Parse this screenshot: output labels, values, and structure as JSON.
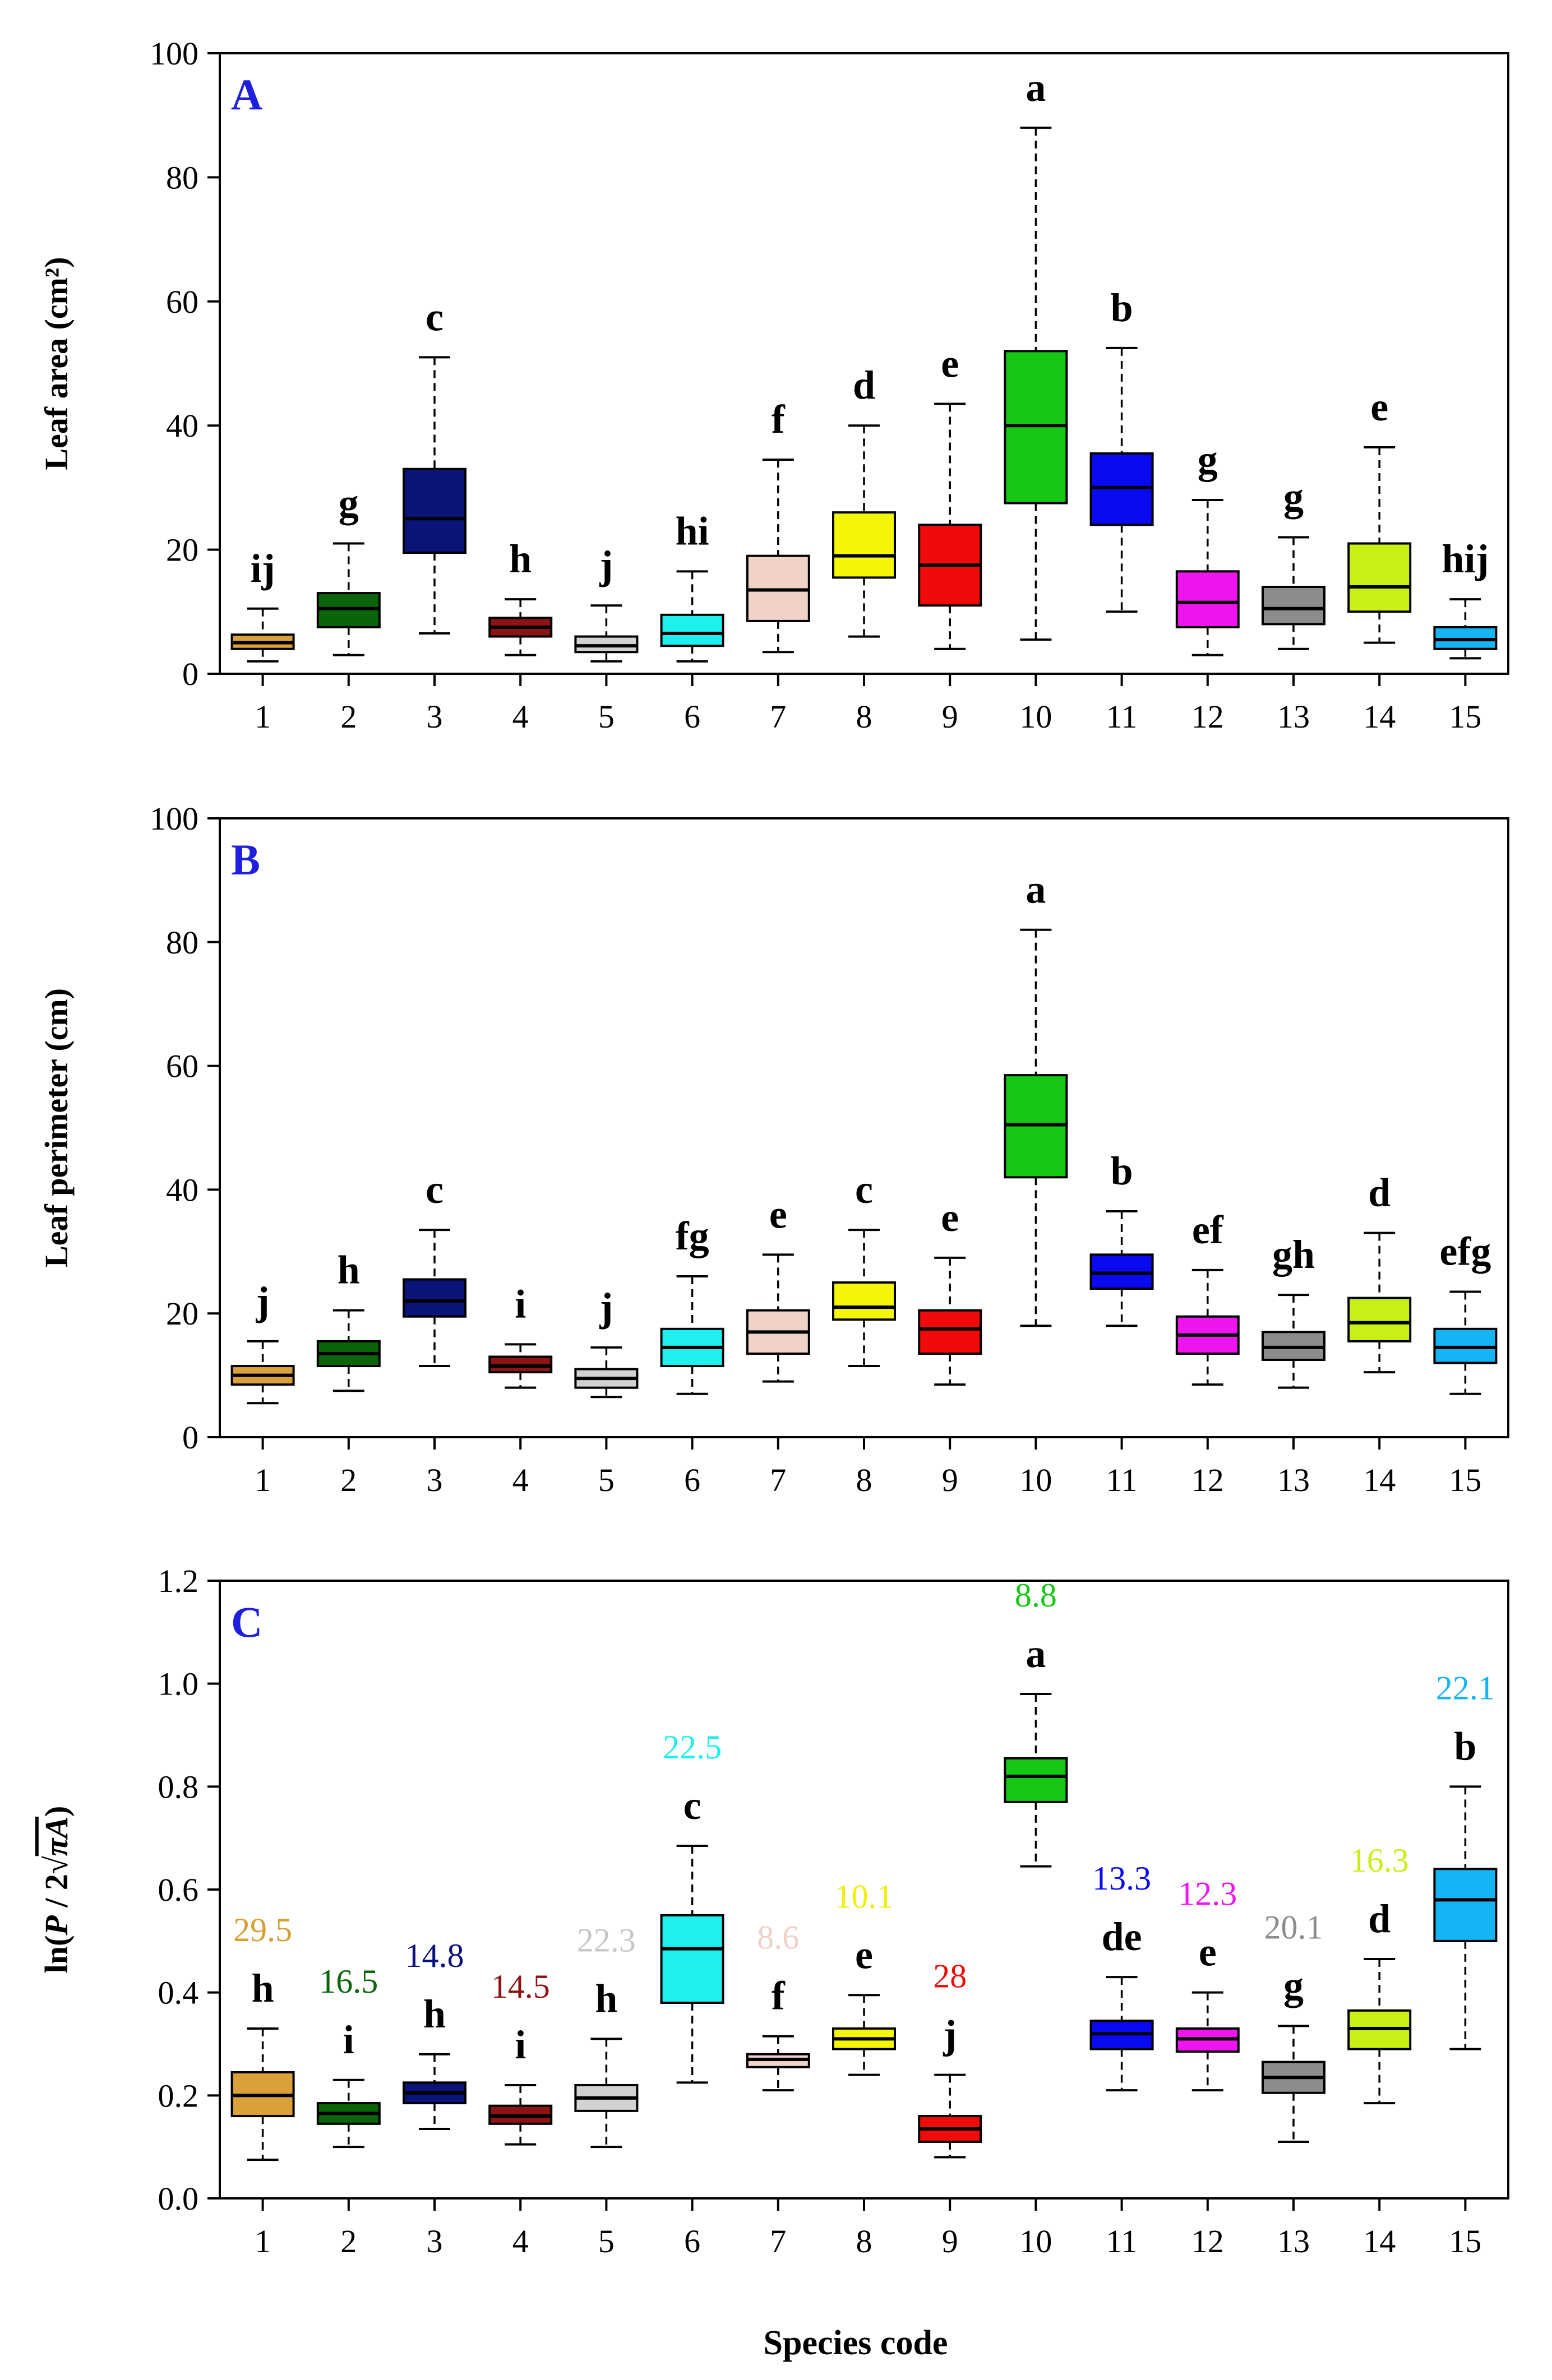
{
  "figure": {
    "xlabel": "Species code"
  },
  "chart_data": [
    {
      "type": "box",
      "panel_label": "A",
      "ylabel": "Leaf area (cm²)",
      "ylim": [
        0,
        100
      ],
      "yticks": [
        "0",
        "20",
        "40",
        "60",
        "80",
        "100"
      ],
      "categories": [
        "1",
        "2",
        "3",
        "4",
        "5",
        "6",
        "7",
        "8",
        "9",
        "10",
        "11",
        "12",
        "13",
        "14",
        "15"
      ],
      "boxes": [
        {
          "min": 2,
          "q1": 4,
          "median": 5,
          "q3": 6.3,
          "max": 10.5
        },
        {
          "min": 3,
          "q1": 7.5,
          "median": 10.5,
          "q3": 13,
          "max": 21
        },
        {
          "min": 6.5,
          "q1": 19.5,
          "median": 25,
          "q3": 33,
          "max": 51
        },
        {
          "min": 3,
          "q1": 6,
          "median": 7.5,
          "q3": 9,
          "max": 12
        },
        {
          "min": 2,
          "q1": 3.5,
          "median": 4.5,
          "q3": 6,
          "max": 11
        },
        {
          "min": 2,
          "q1": 4.5,
          "median": 6.5,
          "q3": 9.5,
          "max": 16.5
        },
        {
          "min": 3.5,
          "q1": 8.5,
          "median": 13.5,
          "q3": 19,
          "max": 34.5
        },
        {
          "min": 6,
          "q1": 15.5,
          "median": 19,
          "q3": 26,
          "max": 40
        },
        {
          "min": 4,
          "q1": 11,
          "median": 17.5,
          "q3": 24,
          "max": 43.5
        },
        {
          "min": 5.5,
          "q1": 27.5,
          "median": 40,
          "q3": 52,
          "max": 88
        },
        {
          "min": 10,
          "q1": 24,
          "median": 30,
          "q3": 35.5,
          "max": 52.5
        },
        {
          "min": 3,
          "q1": 7.5,
          "median": 11.5,
          "q3": 16.5,
          "max": 28
        },
        {
          "min": 4,
          "q1": 8,
          "median": 10.5,
          "q3": 14,
          "max": 22
        },
        {
          "min": 5,
          "q1": 10,
          "median": 14,
          "q3": 21,
          "max": 36.5
        },
        {
          "min": 2.5,
          "q1": 4,
          "median": 5.5,
          "q3": 7.5,
          "max": 12
        }
      ],
      "letters": [
        "ij",
        "g",
        "c",
        "h",
        "j",
        "hi",
        "f",
        "d",
        "e",
        "a",
        "b",
        "g",
        "g",
        "e",
        "hij"
      ]
    },
    {
      "type": "box",
      "panel_label": "B",
      "ylabel": "Leaf perimeter (cm)",
      "ylim": [
        0,
        100
      ],
      "yticks": [
        "0",
        "20",
        "40",
        "60",
        "80",
        "100"
      ],
      "categories": [
        "1",
        "2",
        "3",
        "4",
        "5",
        "6",
        "7",
        "8",
        "9",
        "10",
        "11",
        "12",
        "13",
        "14",
        "15"
      ],
      "boxes": [
        {
          "min": 5.5,
          "q1": 8.5,
          "median": 10,
          "q3": 11.5,
          "max": 15.5
        },
        {
          "min": 7.5,
          "q1": 11.5,
          "median": 13.5,
          "q3": 15.5,
          "max": 20.5
        },
        {
          "min": 11.5,
          "q1": 19.5,
          "median": 22,
          "q3": 25.5,
          "max": 33.5
        },
        {
          "min": 8,
          "q1": 10.5,
          "median": 11.5,
          "q3": 13,
          "max": 15
        },
        {
          "min": 6.5,
          "q1": 8,
          "median": 9.5,
          "q3": 11,
          "max": 14.5
        },
        {
          "min": 7,
          "q1": 11.5,
          "median": 14.5,
          "q3": 17.5,
          "max": 26
        },
        {
          "min": 9,
          "q1": 13.5,
          "median": 17,
          "q3": 20.5,
          "max": 29.5
        },
        {
          "min": 11.5,
          "q1": 19,
          "median": 21,
          "q3": 25,
          "max": 33.5
        },
        {
          "min": 8.5,
          "q1": 13.5,
          "median": 17.5,
          "q3": 20.5,
          "max": 29
        },
        {
          "min": 18,
          "q1": 42,
          "median": 50.5,
          "q3": 58.5,
          "max": 82
        },
        {
          "min": 18,
          "q1": 24,
          "median": 26.5,
          "q3": 29.5,
          "max": 36.5
        },
        {
          "min": 8.5,
          "q1": 13.5,
          "median": 16.5,
          "q3": 19.5,
          "max": 27
        },
        {
          "min": 8,
          "q1": 12.5,
          "median": 14.5,
          "q3": 17,
          "max": 23
        },
        {
          "min": 10.5,
          "q1": 15.5,
          "median": 18.5,
          "q3": 22.5,
          "max": 33
        },
        {
          "min": 7,
          "q1": 12,
          "median": 14.5,
          "q3": 17.5,
          "max": 23.5
        }
      ],
      "letters": [
        "j",
        "h",
        "c",
        "i",
        "j",
        "fg",
        "e",
        "c",
        "e",
        "a",
        "b",
        "ef",
        "gh",
        "d",
        "efg"
      ]
    },
    {
      "type": "box",
      "panel_label": "C",
      "ylabel_prefix": "ln(",
      "ylabel_p": "P",
      "ylabel_mid": " / 2",
      "ylabel_root": "πA",
      "ylabel_suffix": ")",
      "ylim": [
        0,
        1.2
      ],
      "yticks": [
        "0.0",
        "0.2",
        "0.4",
        "0.6",
        "0.8",
        "1.0",
        "1.2"
      ],
      "categories": [
        "1",
        "2",
        "3",
        "4",
        "5",
        "6",
        "7",
        "8",
        "9",
        "10",
        "11",
        "12",
        "13",
        "14",
        "15"
      ],
      "boxes": [
        {
          "min": 0.075,
          "q1": 0.16,
          "median": 0.2,
          "q3": 0.245,
          "max": 0.33
        },
        {
          "min": 0.1,
          "q1": 0.145,
          "median": 0.165,
          "q3": 0.185,
          "max": 0.23
        },
        {
          "min": 0.135,
          "q1": 0.185,
          "median": 0.205,
          "q3": 0.225,
          "max": 0.28
        },
        {
          "min": 0.105,
          "q1": 0.145,
          "median": 0.16,
          "q3": 0.18,
          "max": 0.22
        },
        {
          "min": 0.1,
          "q1": 0.17,
          "median": 0.195,
          "q3": 0.22,
          "max": 0.31
        },
        {
          "min": 0.225,
          "q1": 0.38,
          "median": 0.485,
          "q3": 0.55,
          "max": 0.685
        },
        {
          "min": 0.21,
          "q1": 0.255,
          "median": 0.27,
          "q3": 0.28,
          "max": 0.315
        },
        {
          "min": 0.24,
          "q1": 0.29,
          "median": 0.31,
          "q3": 0.33,
          "max": 0.395
        },
        {
          "min": 0.08,
          "q1": 0.11,
          "median": 0.135,
          "q3": 0.16,
          "max": 0.24
        },
        {
          "min": 0.645,
          "q1": 0.77,
          "median": 0.82,
          "q3": 0.855,
          "max": 0.98
        },
        {
          "min": 0.21,
          "q1": 0.29,
          "median": 0.32,
          "q3": 0.345,
          "max": 0.43
        },
        {
          "min": 0.21,
          "q1": 0.285,
          "median": 0.31,
          "q3": 0.33,
          "max": 0.4
        },
        {
          "min": 0.11,
          "q1": 0.205,
          "median": 0.235,
          "q3": 0.265,
          "max": 0.335
        },
        {
          "min": 0.185,
          "q1": 0.29,
          "median": 0.33,
          "q3": 0.365,
          "max": 0.465
        },
        {
          "min": 0.29,
          "q1": 0.5,
          "median": 0.58,
          "q3": 0.64,
          "max": 0.8
        }
      ],
      "letters": [
        "h",
        "i",
        "h",
        "i",
        "h",
        "c",
        "f",
        "e",
        "j",
        "a",
        "de",
        "e",
        "g",
        "d",
        "b"
      ],
      "cv_labels": [
        "29.5",
        "16.5",
        "14.8",
        "14.5",
        "22.3",
        "22.5",
        "8.6",
        "10.1",
        "28",
        "8.8",
        "13.3",
        "12.3",
        "20.1",
        "16.3",
        "22.1"
      ]
    }
  ],
  "colors": [
    "#daa03a",
    "#0a640a",
    "#0a1478",
    "#8c1414",
    "#d2d2d2",
    "#1ef0f0",
    "#f0d2c8",
    "#f5f50a",
    "#f00a0a",
    "#14c814",
    "#0a0af0",
    "#f014f0",
    "#8c8c8c",
    "#c8f014",
    "#14b4f5"
  ],
  "cv_text_colors": [
    "#d4a030",
    "#0a640a",
    "#0a1478",
    "#8c1414",
    "#c8c8c8",
    "#1ef0f0",
    "#f0d2c8",
    "#f0f00a",
    "#f00a0a",
    "#14c814",
    "#0a0af0",
    "#f014f0",
    "#8c8c8c",
    "#c8f014",
    "#14b4f5"
  ]
}
